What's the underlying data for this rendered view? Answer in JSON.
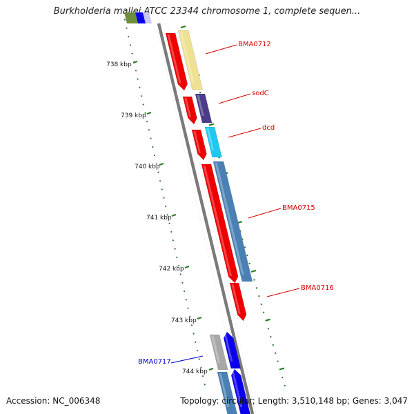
{
  "title": "Burkholderia mallei ATCC 23344 chromosome 1, complete sequen...",
  "footer": {
    "accession": "Accession: NC_006348",
    "stats": "Topology: circular; Length: 3,510,148 bp; Genes: 3,047"
  },
  "colors": {
    "red": "#ee0000",
    "yellow": "#eee191",
    "purple": "#4b3c8a",
    "cyan": "#1ec8f0",
    "steel": "#4a80b4",
    "blue": "#0a00ee",
    "gray": "#a8a8a8",
    "lavender": "#c8c8f0",
    "olive": "#6e8f3a",
    "backbone": "#7a7a7a",
    "tick_green": "#2b7a2b",
    "label_red": "#d40000",
    "label_blue": "#0000cc"
  },
  "kbp_labels": [
    "738 kbp",
    "739 kbp",
    "740 kbp",
    "741 kbp",
    "742 kbp",
    "743 kbp",
    "744 kbp"
  ],
  "gene_labels": [
    {
      "text": "BMA0712",
      "color": "label_red"
    },
    {
      "text": "sodC",
      "color": "label_red"
    },
    {
      "text": "dcd",
      "color": "label_red"
    },
    {
      "text": "BMA0715",
      "color": "label_red"
    },
    {
      "text": "BMA0716",
      "color": "label_red"
    },
    {
      "text": "BMA0717",
      "color": "label_blue"
    }
  ]
}
